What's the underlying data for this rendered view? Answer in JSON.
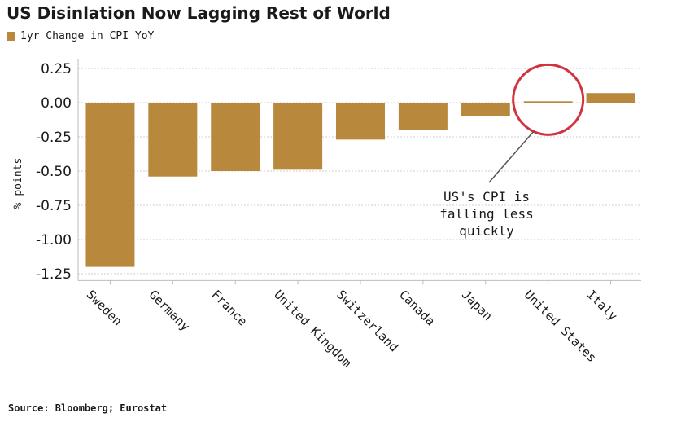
{
  "chart_data": {
    "type": "bar",
    "title": "US Disinlation Now Lagging Rest of World",
    "legend": "1yr Change in CPI YoY",
    "ylabel": "% points",
    "xlabel": "",
    "categories": [
      "Sweden",
      "Germany",
      "France",
      "United Kingdom",
      "Switzerland",
      "Canada",
      "Japan",
      "United States",
      "Italy"
    ],
    "series": [
      {
        "name": "1yr Change in CPI YoY",
        "values": [
          -1.2,
          -0.54,
          -0.5,
          -0.49,
          -0.27,
          -0.2,
          -0.1,
          0.01,
          0.07
        ]
      }
    ],
    "ylim": [
      -1.3,
      0.32
    ],
    "yticks": [
      0.25,
      0.0,
      -0.25,
      -0.5,
      -0.75,
      -1.0,
      -1.25
    ],
    "ytick_labels": [
      "0.25",
      "0.00",
      "-0.25",
      "-0.50",
      "-0.75",
      "-1.00",
      "-1.25"
    ],
    "grid": true,
    "bar_color": "#b8893d",
    "annotation": {
      "lines": [
        "US's CPI is",
        "falling less",
        "quickly"
      ],
      "target": "United States",
      "circle_color": "#d0343f"
    },
    "source": "Source: Bloomberg; Eurostat"
  }
}
